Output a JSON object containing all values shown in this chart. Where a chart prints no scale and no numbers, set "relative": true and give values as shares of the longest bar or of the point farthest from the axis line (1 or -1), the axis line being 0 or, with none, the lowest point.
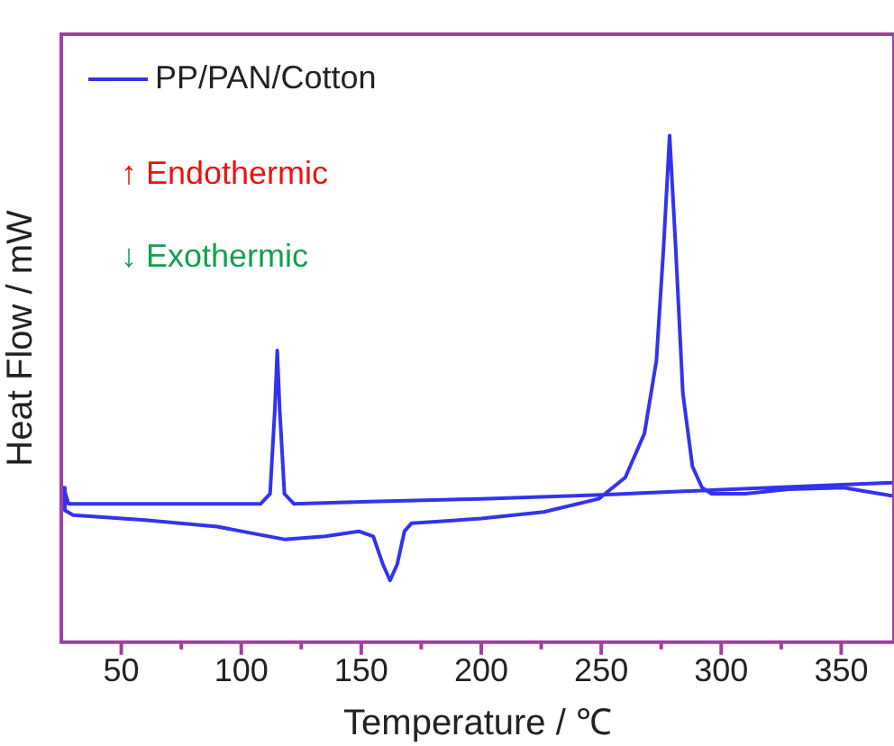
{
  "chart_data": {
    "type": "line",
    "relative": true,
    "xlabel": "Temperature / ℃",
    "ylabel": "Heat Flow / mW",
    "xlim": [
      25,
      372
    ],
    "xticks": [
      50,
      {
        "value": 75,
        "label": null
      },
      100,
      {
        "value": 125,
        "label": null
      },
      150,
      {
        "value": 175,
        "label": null
      },
      200,
      {
        "value": 225,
        "label": null
      },
      250,
      {
        "value": 275,
        "label": null
      },
      300,
      {
        "value": 325,
        "label": null
      },
      350
    ],
    "legend": "top left",
    "grid": false,
    "marker": "none",
    "line_style": "solid",
    "annotations": [
      "↑ Endothermic",
      "↓ Exothermic"
    ],
    "series": [
      {
        "name": "PP/PAN/Cotton",
        "color": "#3333ee",
        "x": [
          371,
          300,
          250,
          200,
          150,
          122,
          118,
          116,
          115,
          114,
          112,
          108,
          60,
          28,
          26,
          26.5,
          30,
          60,
          90,
          118,
          135,
          149,
          155,
          159,
          162,
          165,
          168,
          171,
          200,
          226,
          249,
          260,
          268,
          273,
          276,
          278.5,
          281,
          284,
          288,
          292,
          296,
          310,
          328,
          351,
          371
        ],
        "values": [
          0.315,
          0.301,
          0.291,
          0.283,
          0.277,
          0.273,
          0.293,
          0.46,
          0.576,
          0.46,
          0.293,
          0.273,
          0.273,
          0.273,
          0.305,
          0.26,
          0.251,
          0.241,
          0.228,
          0.203,
          0.209,
          0.219,
          0.209,
          0.154,
          0.122,
          0.154,
          0.219,
          0.235,
          0.244,
          0.257,
          0.283,
          0.325,
          0.412,
          0.556,
          0.781,
          1.0,
          0.781,
          0.492,
          0.347,
          0.305,
          0.293,
          0.293,
          0.302,
          0.305,
          0.289
        ]
      }
    ]
  }
}
